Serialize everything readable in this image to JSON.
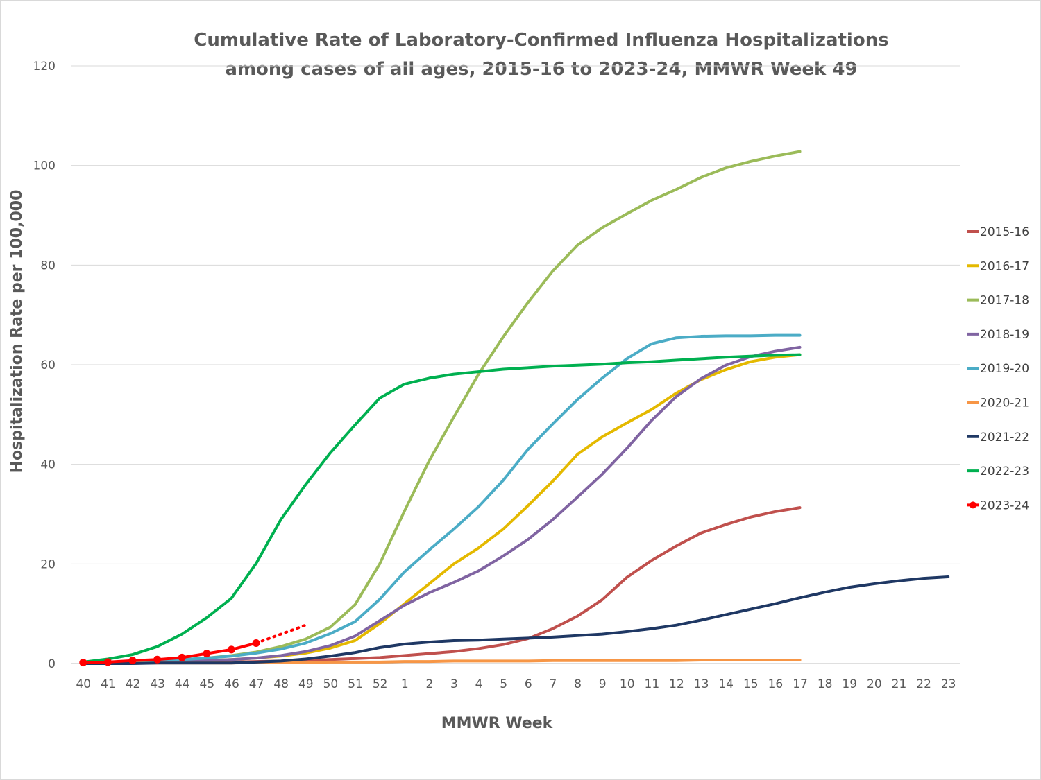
{
  "chart_data": {
    "type": "line",
    "title": [
      "Cumulative Rate of Laboratory-Confirmed Influenza Hospitalizations",
      "among cases of all ages, 2015-16 to 2023-24, MMWR Week 49"
    ],
    "xlabel": "MMWR Week",
    "ylabel": "Hospitalization Rate per 100,000",
    "ylim": [
      0,
      120
    ],
    "yticks": [
      0,
      20,
      40,
      60,
      80,
      100,
      120
    ],
    "grid": "horizontal",
    "legend_position": "right",
    "categories": [
      "40",
      "41",
      "42",
      "43",
      "44",
      "45",
      "46",
      "47",
      "48",
      "49",
      "50",
      "51",
      "52",
      "1",
      "2",
      "3",
      "4",
      "5",
      "6",
      "7",
      "8",
      "9",
      "10",
      "11",
      "12",
      "13",
      "14",
      "15",
      "16",
      "17",
      "18",
      "19",
      "20",
      "21",
      "22",
      "23"
    ],
    "series": [
      {
        "name": "2015-16",
        "color": "#c0504d",
        "marker": "none",
        "values": [
          0.1,
          0.1,
          0.1,
          0.2,
          0.2,
          0.3,
          0.3,
          0.4,
          0.5,
          0.6,
          0.8,
          1.0,
          1.2,
          1.6,
          2.0,
          2.4,
          3.0,
          3.8,
          5.0,
          7.0,
          9.5,
          12.8,
          17.3,
          20.7,
          23.6,
          26.2,
          27.9,
          29.4,
          30.5,
          31.3,
          null,
          null,
          null,
          null,
          null,
          null
        ]
      },
      {
        "name": "2016-17",
        "color": "#e4b900",
        "marker": "none",
        "values": [
          0.1,
          0.1,
          0.2,
          0.3,
          0.4,
          0.6,
          0.8,
          1.1,
          1.5,
          2.1,
          3.1,
          4.6,
          8.0,
          12.0,
          16.0,
          20.0,
          23.2,
          27.0,
          31.7,
          36.6,
          42.0,
          45.5,
          48.3,
          51.0,
          54.3,
          57.0,
          59.0,
          60.6,
          61.5,
          62.0,
          null,
          null,
          null,
          null,
          null,
          null
        ]
      },
      {
        "name": "2017-18",
        "color": "#9bbb59",
        "marker": "none",
        "values": [
          0.2,
          0.3,
          0.4,
          0.6,
          0.8,
          1.1,
          1.6,
          2.3,
          3.4,
          4.9,
          7.3,
          11.8,
          20.0,
          30.6,
          40.7,
          49.5,
          58.1,
          65.6,
          72.5,
          78.8,
          84.0,
          87.5,
          90.3,
          93.0,
          95.2,
          97.6,
          99.5,
          100.8,
          101.9,
          102.8,
          null,
          null,
          null,
          null,
          null,
          null
        ]
      },
      {
        "name": "2018-19",
        "color": "#8064a2",
        "marker": "none",
        "values": [
          0.1,
          0.2,
          0.2,
          0.3,
          0.4,
          0.6,
          0.8,
          1.1,
          1.6,
          2.4,
          3.6,
          5.5,
          8.6,
          11.7,
          14.2,
          16.3,
          18.6,
          21.6,
          24.9,
          28.9,
          33.4,
          38.0,
          43.2,
          48.8,
          53.6,
          57.2,
          59.9,
          61.6,
          62.7,
          63.5,
          null,
          null,
          null,
          null,
          null,
          null
        ]
      },
      {
        "name": "2019-20",
        "color": "#4bacc6",
        "marker": "none",
        "values": [
          0.2,
          0.3,
          0.4,
          0.6,
          0.8,
          1.1,
          1.5,
          2.1,
          2.9,
          4.1,
          6.0,
          8.4,
          12.9,
          18.4,
          22.8,
          27.0,
          31.5,
          36.8,
          43.0,
          48.1,
          53.0,
          57.3,
          61.2,
          64.2,
          65.4,
          65.7,
          65.8,
          65.8,
          65.9,
          65.9,
          null,
          null,
          null,
          null,
          null,
          null
        ]
      },
      {
        "name": "2020-21",
        "color": "#f79646",
        "marker": "none",
        "values": [
          0.0,
          0.0,
          0.1,
          0.1,
          0.1,
          0.1,
          0.1,
          0.2,
          0.2,
          0.2,
          0.3,
          0.3,
          0.3,
          0.4,
          0.4,
          0.5,
          0.5,
          0.5,
          0.5,
          0.6,
          0.6,
          0.6,
          0.6,
          0.6,
          0.6,
          0.7,
          0.7,
          0.7,
          0.7,
          0.7,
          null,
          null,
          null,
          null,
          null,
          null
        ]
      },
      {
        "name": "2021-22",
        "color": "#1f3864",
        "marker": "none",
        "values": [
          0.0,
          0.0,
          0.0,
          0.1,
          0.1,
          0.1,
          0.1,
          0.3,
          0.5,
          0.9,
          1.5,
          2.2,
          3.2,
          3.9,
          4.3,
          4.6,
          4.7,
          4.9,
          5.1,
          5.3,
          5.6,
          5.9,
          6.4,
          7.0,
          7.7,
          8.7,
          9.8,
          10.9,
          12.0,
          13.2,
          14.3,
          15.3,
          16.0,
          16.6,
          17.1,
          17.4
        ]
      },
      {
        "name": "2022-23",
        "color": "#00b050",
        "marker": "none",
        "values": [
          0.3,
          0.9,
          1.8,
          3.4,
          5.9,
          9.2,
          13.1,
          20.1,
          28.9,
          35.9,
          42.3,
          47.9,
          53.3,
          56.1,
          57.3,
          58.1,
          58.6,
          59.1,
          59.4,
          59.7,
          59.9,
          60.1,
          60.4,
          60.6,
          60.9,
          61.2,
          61.5,
          61.7,
          61.9,
          62.0,
          null,
          null,
          null,
          null,
          null,
          null
        ]
      },
      {
        "name": "2023-24",
        "color": "#ff0000",
        "marker": "circle",
        "values": [
          0.2,
          0.3,
          0.6,
          0.8,
          1.2,
          2.0,
          2.8,
          4.1,
          null,
          null,
          null,
          null,
          null,
          null,
          null,
          null,
          null,
          null,
          null,
          null,
          null,
          null,
          null,
          null,
          null,
          null,
          null,
          null,
          null,
          null,
          null,
          null,
          null,
          null,
          null,
          null
        ],
        "projection": {
          "style": "dotted",
          "values": [
            4.1,
            7.7
          ],
          "x_from": "47",
          "x_to": "49"
        }
      }
    ]
  }
}
